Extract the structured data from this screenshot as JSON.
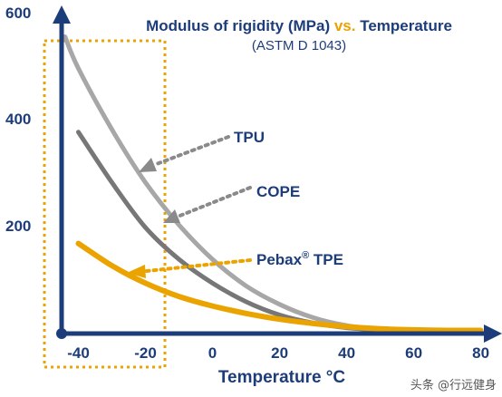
{
  "chart_data": {
    "type": "line",
    "title": "Modulus of rigidity (MPa) vs. Temperature",
    "title_parts": [
      "Modulus of rigidity (MPa) ",
      "vs.",
      " Temperature"
    ],
    "subtitle": "(ASTM D 1043)",
    "xlabel": "Temperature °C",
    "ylabel": "",
    "xlim": [
      -45,
      82
    ],
    "ylim": [
      0,
      600
    ],
    "x_ticks": [
      "-40",
      "-20",
      "0",
      "20",
      "40",
      "60",
      "80"
    ],
    "y_ticks": [
      "200",
      "400",
      "600"
    ],
    "highlight_range": [
      -45,
      -7
    ],
    "series": [
      {
        "name": "TPU",
        "label": "TPU",
        "color": "#a7a7a7",
        "x": [
          -44,
          -40,
          -30,
          -20,
          -10,
          0,
          10,
          20,
          30,
          40,
          50,
          60,
          70,
          80
        ],
        "y": [
          560,
          500,
          385,
          285,
          205,
          140,
          90,
          55,
          30,
          15,
          8,
          5,
          4,
          4
        ]
      },
      {
        "name": "COPE",
        "label": "COPE",
        "color": "#777777",
        "x": [
          -40,
          -30,
          -20,
          -10,
          0,
          10,
          20,
          30,
          40,
          50,
          60,
          70,
          80
        ],
        "y": [
          380,
          285,
          200,
          140,
          95,
          60,
          35,
          20,
          11,
          7,
          5,
          4,
          4
        ]
      },
      {
        "name": "Pebax® TPE",
        "label_main": "Pebax",
        "label_sup": "®",
        "label_tail": " TPE",
        "color": "#eba300",
        "x": [
          -40,
          -30,
          -20,
          -10,
          0,
          10,
          20,
          30,
          40,
          50,
          60,
          70,
          80
        ],
        "y": [
          170,
          128,
          95,
          70,
          52,
          38,
          27,
          19,
          13,
          9,
          7,
          6,
          6
        ]
      }
    ]
  },
  "colors": {
    "axis": "#1d3d7a",
    "accent": "#eba300",
    "arrow": "#8a8a8a"
  },
  "watermark": "头条 @行远健身"
}
